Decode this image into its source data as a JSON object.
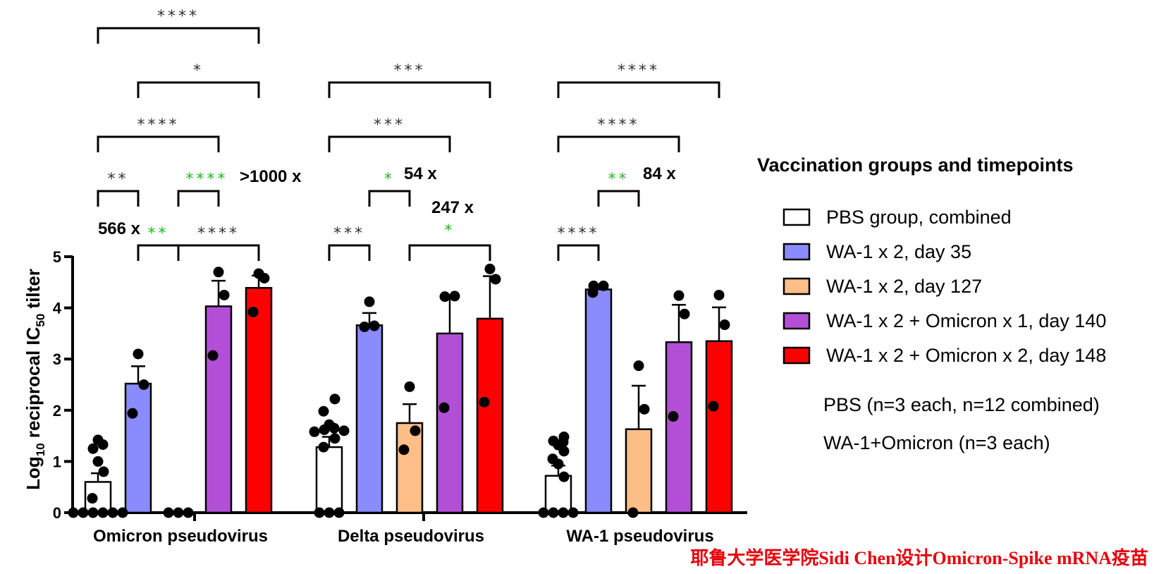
{
  "chart_data": {
    "type": "bar",
    "ylabel": "Log10 reciprocal IC50 tilter",
    "ylabel_parts": {
      "log": "Log",
      "log_sub": "10",
      "mid": " reciprocal IC",
      "ic_sub": "50",
      "end": " tilter"
    },
    "ylim": [
      0,
      5
    ],
    "yticks": [
      "0",
      "1",
      "2",
      "3",
      "4",
      "5"
    ],
    "categories": [
      "Omicron pseudovirus",
      "Delta pseudovirus",
      "WA-1 pseudovirus"
    ],
    "series": [
      {
        "name": "PBS group, combined",
        "color": "#ffffff",
        "values": [
          0.6,
          1.28,
          0.72
        ],
        "err": [
          0.17,
          0.2,
          0.2
        ]
      },
      {
        "name": "WA-1 x 2, day 35",
        "color": "#8a8cfd",
        "values": [
          2.52,
          3.66,
          4.36
        ],
        "err": [
          0.34,
          0.24,
          0.06
        ]
      },
      {
        "name": "WA-1 x 2, day 127",
        "color": "#fdbe88",
        "values": [
          0.0,
          1.75,
          1.63
        ],
        "err": [
          0.0,
          0.37,
          0.85
        ]
      },
      {
        "name": "WA-1 x 2 + Omicron x 1, day 140",
        "color": "#b34fd6",
        "values": [
          4.03,
          3.5,
          3.33
        ],
        "err": [
          0.5,
          0.73,
          0.73
        ]
      },
      {
        "name": "WA-1 x 2 + Omicron x 2, day 148",
        "color": "#fd0000",
        "values": [
          4.39,
          3.79,
          3.35
        ],
        "err": [
          0.24,
          0.83,
          0.66
        ]
      }
    ],
    "points": [
      [
        [
          0,
          0,
          0,
          0,
          0,
          0,
          0.28,
          0.8,
          1.0,
          1.25,
          1.33,
          1.42
        ],
        [
          1.94,
          2.5,
          3.1
        ],
        [
          0,
          0,
          0
        ],
        [
          3.07,
          4.25,
          4.7
        ],
        [
          3.92,
          4.58,
          4.67
        ]
      ],
      [
        [
          0,
          0,
          0,
          1.28,
          1.45,
          1.58,
          1.62,
          1.65,
          1.72,
          1.98,
          2.22,
          1.6
        ],
        [
          3.63,
          3.65,
          4.12
        ],
        [
          1.23,
          1.6,
          2.46
        ],
        [
          2.05,
          4.22,
          4.23
        ],
        [
          2.16,
          4.56,
          4.76
        ]
      ],
      [
        [
          0,
          0,
          0,
          0,
          0.7,
          0.95,
          1.05,
          1.2,
          1.32,
          1.4,
          1.48,
          1.38
        ],
        [
          4.3,
          4.43,
          4.43
        ],
        [
          0.0,
          2.02,
          2.87
        ],
        [
          1.88,
          3.88,
          4.24
        ],
        [
          2.08,
          3.67,
          4.25
        ]
      ]
    ],
    "comparisons": [
      {
        "group": 0,
        "from": 0,
        "to": 4,
        "text": "****",
        "color": "#333333"
      },
      {
        "group": 0,
        "from": 1,
        "to": 4,
        "text": "*",
        "color": "#333333"
      },
      {
        "group": 0,
        "from": 0,
        "to": 3,
        "text": "****",
        "color": "#333333"
      },
      {
        "group": 0,
        "from": 0,
        "to": 1,
        "text": "**",
        "color": "#333333"
      },
      {
        "group": 0,
        "from": 2,
        "to": 3,
        "text": "****",
        "color": "#1db81d",
        "fold": ">1000 x"
      },
      {
        "group": 0,
        "from": 1,
        "to": 2,
        "text": "**",
        "color": "#1db81d",
        "fold": "566 x"
      },
      {
        "group": 0,
        "from": 2,
        "to": 4,
        "text": "****",
        "color": "#333333"
      },
      {
        "group": 1,
        "from": 0,
        "to": 4,
        "text": "***",
        "color": "#333333"
      },
      {
        "group": 1,
        "from": 0,
        "to": 3,
        "text": "***",
        "color": "#333333"
      },
      {
        "group": 1,
        "from": 1,
        "to": 2,
        "text": "*",
        "color": "#1db81d",
        "fold": "54 x"
      },
      {
        "group": 1,
        "from": 0,
        "to": 1,
        "text": "***",
        "color": "#333333"
      },
      {
        "group": 1,
        "from": 2,
        "to": 4,
        "text": "*",
        "color": "#1db81d",
        "fold": "247 x"
      },
      {
        "group": 2,
        "from": 0,
        "to": 4,
        "text": "****",
        "color": "#333333"
      },
      {
        "group": 2,
        "from": 0,
        "to": 3,
        "text": "****",
        "color": "#333333"
      },
      {
        "group": 2,
        "from": 1,
        "to": 2,
        "text": "**",
        "color": "#1db81d",
        "fold": "84 x"
      },
      {
        "group": 2,
        "from": 0,
        "to": 1,
        "text": "****",
        "color": "#333333"
      }
    ],
    "legend_title": "Vaccination groups and timepoints",
    "legend_notes": [
      "PBS (n=3 each, n=12 combined)",
      "WA-1+Omicron (n=3 each)"
    ],
    "legend_position": "right",
    "fold_color": "#1db81d"
  },
  "watermark": "耶鲁大学医学院Sidi Chen设计Omicron-Spike mRNA疫苗"
}
